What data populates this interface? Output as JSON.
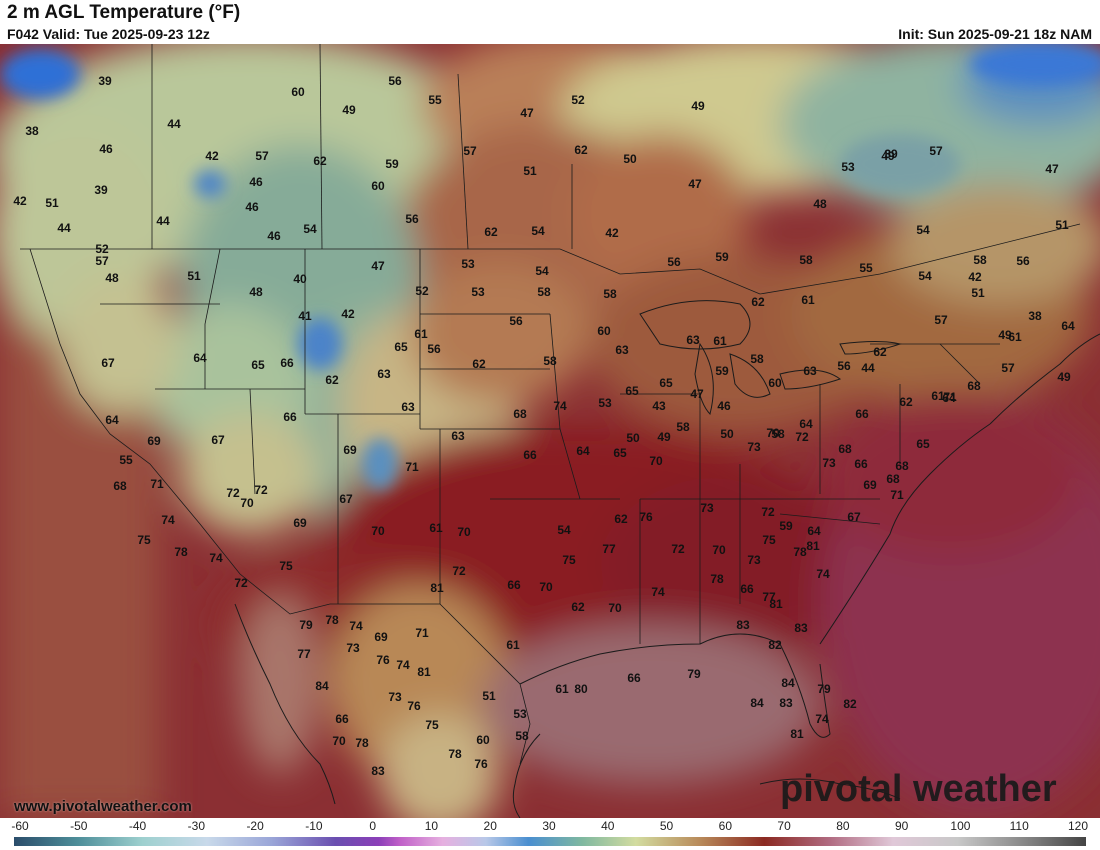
{
  "header": {
    "title": "2 m AGL Temperature (°F)",
    "valid": "F042 Valid: Tue 2025-09-23 12z",
    "init": "Init: Sun 2025-09-21 18z NAM"
  },
  "map": {
    "site_url": "www.pivotalweather.com",
    "brand": "pivotal weather",
    "temperature_labels": [
      "39",
      "56",
      "60",
      "55",
      "49",
      "38",
      "44",
      "47",
      "52",
      "49",
      "46",
      "42",
      "57",
      "62",
      "59",
      "57",
      "62",
      "50",
      "39",
      "46",
      "60",
      "51",
      "47",
      "53",
      "48",
      "44",
      "46",
      "46",
      "54",
      "56",
      "62",
      "54",
      "42",
      "42",
      "44",
      "49",
      "57",
      "47",
      "51",
      "54",
      "52",
      "51",
      "40",
      "47",
      "53",
      "54",
      "58",
      "48",
      "48",
      "53",
      "52",
      "56",
      "58",
      "59",
      "56",
      "58",
      "55",
      "58",
      "51",
      "54",
      "42",
      "57",
      "41",
      "42",
      "56",
      "60",
      "63",
      "63",
      "61",
      "58",
      "56",
      "51",
      "49",
      "57",
      "57",
      "62",
      "61",
      "62",
      "61",
      "64",
      "65",
      "65",
      "59",
      "60",
      "63",
      "56",
      "44",
      "38",
      "39",
      "49",
      "64",
      "67",
      "64",
      "65",
      "66",
      "62",
      "63",
      "65",
      "61",
      "62",
      "58",
      "74",
      "53",
      "43",
      "47",
      "46",
      "58",
      "64",
      "66",
      "62",
      "69",
      "67",
      "66",
      "63",
      "63",
      "68",
      "50",
      "49",
      "58",
      "70",
      "72",
      "68",
      "66",
      "69",
      "68",
      "68",
      "65",
      "61",
      "64",
      "68",
      "71",
      "55",
      "68",
      "71",
      "69",
      "67",
      "71",
      "66",
      "64",
      "65",
      "70",
      "50",
      "73",
      "73",
      "71",
      "72",
      "72",
      "70",
      "69",
      "70",
      "61",
      "70",
      "54",
      "62",
      "76",
      "73",
      "72",
      "59",
      "64",
      "67",
      "75",
      "78",
      "74",
      "74",
      "72",
      "75",
      "78",
      "74",
      "69",
      "71",
      "81",
      "72",
      "66",
      "70",
      "75",
      "77",
      "72",
      "70",
      "73",
      "78",
      "74",
      "79",
      "77",
      "73",
      "74",
      "61",
      "62",
      "70",
      "74",
      "78",
      "66",
      "81",
      "75",
      "77",
      "81",
      "83",
      "83",
      "82",
      "84",
      "76",
      "81",
      "76",
      "61",
      "66",
      "79",
      "80",
      "84",
      "79",
      "74",
      "82",
      "81",
      "83",
      "84",
      "73",
      "75",
      "51",
      "53",
      "60",
      "66",
      "70",
      "78",
      "83",
      "78",
      "58",
      "76"
    ]
  },
  "colorbar": {
    "ticks": [
      "-60",
      "-50",
      "-40",
      "-30",
      "-20",
      "-10",
      "0",
      "10",
      "20",
      "30",
      "40",
      "50",
      "60",
      "70",
      "80",
      "90",
      "100",
      "110",
      "120"
    ]
  },
  "colors": {
    "cold_blue": "#2f6fd6",
    "cool_teal": "#7fa99a",
    "mild_green": "#c8cf9a",
    "tan": "#c79d6e",
    "brown": "#9b5a3a",
    "warm_red": "#8c1f1f",
    "gulf_mauve": "#9a6a72",
    "ocean_red": "#8e3b46"
  }
}
